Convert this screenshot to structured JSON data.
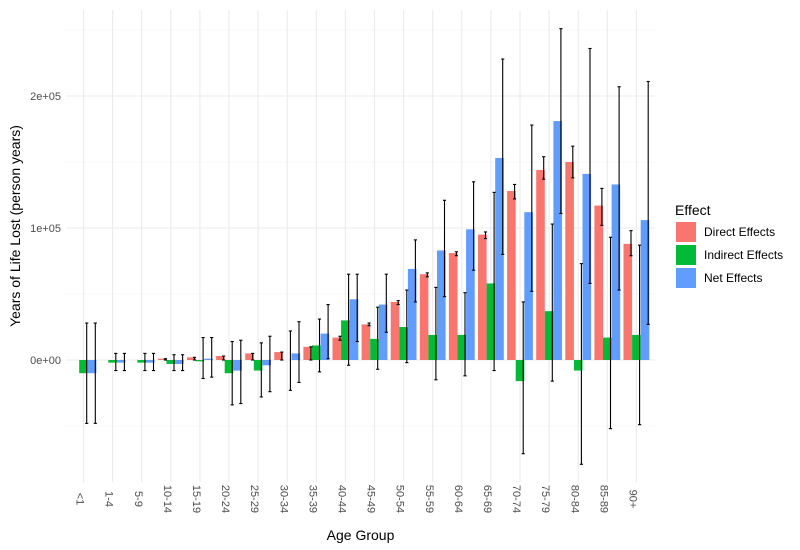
{
  "chart_data": {
    "type": "bar",
    "xlabel": "Age Group",
    "ylabel": "Years of Life Lost (person years)",
    "ylim": [
      -95000,
      252000
    ],
    "yticks": [
      0,
      100000,
      200000
    ],
    "ytick_labels": [
      "0e+00",
      "1e+05",
      "2e+05"
    ],
    "grid": true,
    "legend_position": "right",
    "categories": [
      "<1",
      "1-4",
      "5-9",
      "10-14",
      "15-19",
      "20-24",
      "25-29",
      "30-34",
      "35-39",
      "40-44",
      "45-49",
      "50-54",
      "55-59",
      "60-64",
      "65-69",
      "70-74",
      "75-79",
      "80-84",
      "85-89",
      "90+"
    ],
    "legend": {
      "title": "Effect"
    },
    "series": [
      {
        "name": "Direct Effects",
        "color": "#F8766D",
        "values": [
          0,
          0,
          0,
          1000,
          2000,
          3000,
          5000,
          6000,
          10000,
          17000,
          27000,
          44000,
          65000,
          81000,
          95000,
          128000,
          144000,
          150000,
          117000,
          88000
        ],
        "err_low": [
          0,
          0,
          0,
          0,
          0,
          0,
          0,
          0,
          0,
          15000,
          26000,
          42000,
          63000,
          79000,
          92000,
          122000,
          137000,
          138000,
          102000,
          79000
        ],
        "err_high": [
          0,
          0,
          0,
          1000,
          2000,
          3000,
          5000,
          6000,
          10000,
          18000,
          28000,
          45000,
          66000,
          82000,
          97000,
          133000,
          154000,
          162000,
          130000,
          98000
        ]
      },
      {
        "name": "Indirect Effects",
        "color": "#00BA38",
        "values": [
          -10000,
          -2000,
          -2000,
          -3000,
          -1000,
          -10000,
          -8000,
          0,
          11000,
          30000,
          16000,
          25000,
          19000,
          19000,
          58000,
          -16000,
          37000,
          -8000,
          17000,
          19000
        ],
        "err_low": [
          -48000,
          -8000,
          -8000,
          -8000,
          -14000,
          -34000,
          -28000,
          -23000,
          -9000,
          -4000,
          -7000,
          -2000,
          -15000,
          -12000,
          -8000,
          -71000,
          -16000,
          -79000,
          -52000,
          -49000
        ],
        "err_high": [
          28000,
          5000,
          5000,
          4000,
          17000,
          14000,
          13000,
          22000,
          31000,
          65000,
          40000,
          53000,
          55000,
          51000,
          127000,
          44000,
          103000,
          73000,
          93000,
          87000
        ]
      },
      {
        "name": "Net Effects",
        "color": "#619CFF",
        "values": [
          -10000,
          -2000,
          -2000,
          -3000,
          1000,
          -8000,
          -4000,
          5000,
          20000,
          46000,
          42000,
          69000,
          83000,
          99000,
          153000,
          112000,
          181000,
          141000,
          133000,
          106000
        ],
        "err_low": [
          -48000,
          -8000,
          -8000,
          -8000,
          -13000,
          -33000,
          -24000,
          -17000,
          1000,
          14000,
          21000,
          44000,
          48000,
          68000,
          80000,
          52000,
          111000,
          58000,
          53000,
          27000
        ],
        "err_high": [
          28000,
          5000,
          5000,
          4000,
          17000,
          15000,
          18000,
          29000,
          42000,
          65000,
          65000,
          91000,
          121000,
          135000,
          228000,
          178000,
          251000,
          236000,
          207000,
          211000
        ]
      }
    ]
  }
}
